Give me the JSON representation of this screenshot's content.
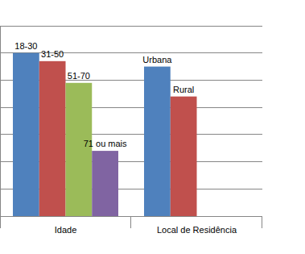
{
  "chart_data": {
    "type": "bar",
    "groups": [
      {
        "name": "Idade",
        "categories": [
          "18-30",
          "31-50",
          "51-70",
          "71 ou mais"
        ],
        "values": [
          6.0,
          5.7,
          4.9,
          2.4
        ],
        "colors": [
          "#4f81bd",
          "#c0504d",
          "#9bbb59",
          "#8064a2"
        ]
      },
      {
        "name": "Local de Residência",
        "categories": [
          "Urbana",
          "Rural"
        ],
        "values": [
          5.5,
          4.4
        ],
        "colors": [
          "#4f81bd",
          "#c0504d"
        ]
      }
    ],
    "ylim": [
      0,
      7
    ],
    "yticks": [
      0,
      1,
      2,
      3,
      4,
      5,
      6,
      7
    ],
    "grid": true,
    "tick_labels": false
  }
}
